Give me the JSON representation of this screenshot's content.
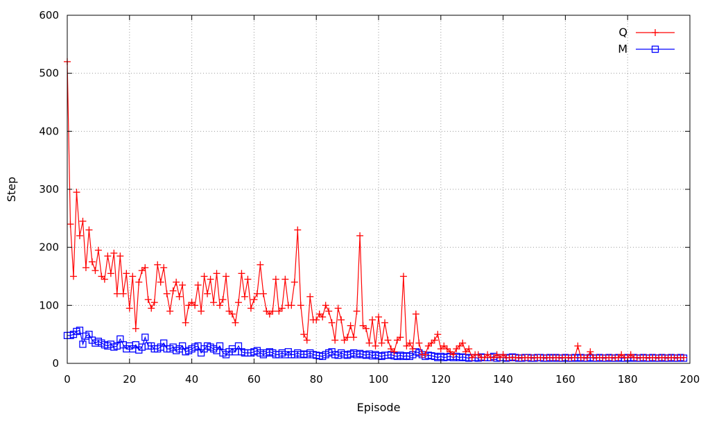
{
  "chart_data": {
    "type": "line",
    "title": "",
    "xlabel": "Episode",
    "ylabel": "Step",
    "xlim": [
      0,
      200
    ],
    "ylim": [
      0,
      600
    ],
    "x_ticks": [
      "0",
      "20",
      "40",
      "60",
      "80",
      "100",
      "120",
      "140",
      "160",
      "180",
      "200"
    ],
    "y_ticks": [
      "0",
      "100",
      "200",
      "300",
      "400",
      "500",
      "600"
    ],
    "grid": true,
    "legend_position": "top-right",
    "series": [
      {
        "name": "Q",
        "color": "#ff0000",
        "marker": "plus",
        "x": [
          0,
          1,
          2,
          3,
          4,
          5,
          6,
          7,
          8,
          9,
          10,
          11,
          12,
          13,
          14,
          15,
          16,
          17,
          18,
          19,
          20,
          21,
          22,
          23,
          24,
          25,
          26,
          27,
          28,
          29,
          30,
          31,
          32,
          33,
          34,
          35,
          36,
          37,
          38,
          39,
          40,
          41,
          42,
          43,
          44,
          45,
          46,
          47,
          48,
          49,
          50,
          51,
          52,
          53,
          54,
          55,
          56,
          57,
          58,
          59,
          60,
          61,
          62,
          63,
          64,
          65,
          66,
          67,
          68,
          69,
          70,
          71,
          72,
          73,
          74,
          75,
          76,
          77,
          78,
          79,
          80,
          81,
          82,
          83,
          84,
          85,
          86,
          87,
          88,
          89,
          90,
          91,
          92,
          93,
          94,
          95,
          96,
          97,
          98,
          99,
          100,
          101,
          102,
          103,
          104,
          105,
          106,
          107,
          108,
          109,
          110,
          111,
          112,
          113,
          114,
          115,
          116,
          117,
          118,
          119,
          120,
          121,
          122,
          123,
          124,
          125,
          126,
          127,
          128,
          129,
          130,
          131,
          132,
          133,
          134,
          135,
          136,
          137,
          138,
          139,
          140,
          141,
          142,
          143,
          144,
          145,
          146,
          147,
          148,
          149,
          150,
          151,
          152,
          153,
          154,
          155,
          156,
          157,
          158,
          159,
          160,
          161,
          162,
          163,
          164,
          165,
          166,
          167,
          168,
          169,
          170,
          171,
          172,
          173,
          174,
          175,
          176,
          177,
          178,
          179,
          180,
          181,
          182,
          183,
          184,
          185,
          186,
          187,
          188,
          189,
          190,
          191,
          192,
          193,
          194,
          195,
          196,
          197,
          198
        ],
        "y": [
          520,
          240,
          150,
          295,
          220,
          245,
          165,
          230,
          175,
          160,
          195,
          150,
          145,
          185,
          155,
          190,
          120,
          185,
          120,
          155,
          95,
          150,
          60,
          140,
          160,
          165,
          110,
          95,
          105,
          170,
          140,
          165,
          120,
          90,
          125,
          140,
          115,
          135,
          70,
          100,
          105,
          100,
          135,
          90,
          150,
          120,
          145,
          105,
          155,
          100,
          110,
          150,
          90,
          85,
          70,
          105,
          155,
          115,
          145,
          95,
          110,
          120,
          170,
          120,
          90,
          85,
          90,
          145,
          90,
          95,
          145,
          100,
          100,
          140,
          230,
          100,
          50,
          40,
          115,
          75,
          75,
          85,
          80,
          100,
          90,
          70,
          40,
          95,
          75,
          40,
          45,
          65,
          45,
          90,
          220,
          65,
          60,
          35,
          75,
          30,
          80,
          35,
          70,
          40,
          25,
          20,
          40,
          45,
          150,
          30,
          35,
          25,
          85,
          35,
          15,
          15,
          30,
          35,
          40,
          50,
          25,
          30,
          25,
          20,
          15,
          25,
          30,
          35,
          20,
          25,
          10,
          15,
          15,
          10,
          10,
          15,
          10,
          10,
          15,
          10,
          15,
          10,
          10,
          10,
          10,
          10,
          10,
          10,
          10,
          10,
          10,
          10,
          10,
          10,
          10,
          10,
          10,
          10,
          10,
          10,
          10,
          10,
          10,
          10,
          30,
          10,
          10,
          10,
          20,
          10,
          10,
          10,
          10,
          10,
          10,
          10,
          10,
          10,
          15,
          10,
          10,
          15,
          10,
          10,
          10,
          10,
          10,
          10,
          10,
          10,
          10,
          10,
          10,
          10,
          10,
          10,
          10,
          10,
          10
        ]
      },
      {
        "name": "M",
        "color": "#0000ff",
        "marker": "square",
        "x": [
          0,
          1,
          2,
          3,
          4,
          5,
          6,
          7,
          8,
          9,
          10,
          11,
          12,
          13,
          14,
          15,
          16,
          17,
          18,
          19,
          20,
          21,
          22,
          23,
          24,
          25,
          26,
          27,
          28,
          29,
          30,
          31,
          32,
          33,
          34,
          35,
          36,
          37,
          38,
          39,
          40,
          41,
          42,
          43,
          44,
          45,
          46,
          47,
          48,
          49,
          50,
          51,
          52,
          53,
          54,
          55,
          56,
          57,
          58,
          59,
          60,
          61,
          62,
          63,
          64,
          65,
          66,
          67,
          68,
          69,
          70,
          71,
          72,
          73,
          74,
          75,
          76,
          77,
          78,
          79,
          80,
          81,
          82,
          83,
          84,
          85,
          86,
          87,
          88,
          89,
          90,
          91,
          92,
          93,
          94,
          95,
          96,
          97,
          98,
          99,
          100,
          101,
          102,
          103,
          104,
          105,
          106,
          107,
          108,
          109,
          110,
          111,
          112,
          113,
          114,
          115,
          116,
          117,
          118,
          119,
          120,
          121,
          122,
          123,
          124,
          125,
          126,
          127,
          128,
          129,
          130,
          131,
          132,
          133,
          134,
          135,
          136,
          137,
          138,
          139,
          140,
          141,
          142,
          143,
          144,
          145,
          146,
          147,
          148,
          149,
          150,
          151,
          152,
          153,
          154,
          155,
          156,
          157,
          158,
          159,
          160,
          161,
          162,
          163,
          164,
          165,
          166,
          167,
          168,
          169,
          170,
          171,
          172,
          173,
          174,
          175,
          176,
          177,
          178,
          179,
          180,
          181,
          182,
          183,
          184,
          185,
          186,
          187,
          188,
          189,
          190,
          191,
          192,
          193,
          194,
          195,
          196,
          197,
          198
        ],
        "y": [
          48,
          48,
          50,
          55,
          57,
          33,
          47,
          50,
          40,
          35,
          38,
          35,
          32,
          30,
          33,
          28,
          30,
          42,
          32,
          25,
          30,
          25,
          32,
          23,
          28,
          45,
          30,
          30,
          25,
          25,
          28,
          35,
          25,
          25,
          28,
          22,
          25,
          30,
          20,
          22,
          25,
          28,
          30,
          18,
          25,
          30,
          28,
          25,
          22,
          30,
          18,
          15,
          20,
          25,
          20,
          30,
          20,
          18,
          18,
          18,
          20,
          22,
          18,
          15,
          18,
          20,
          18,
          15,
          15,
          18,
          15,
          20,
          15,
          15,
          18,
          15,
          16,
          15,
          18,
          15,
          14,
          13,
          12,
          15,
          18,
          20,
          15,
          14,
          18,
          15,
          14,
          16,
          18,
          15,
          17,
          15,
          14,
          16,
          13,
          15,
          13,
          12,
          14,
          14,
          15,
          13,
          12,
          14,
          12,
          13,
          12,
          15,
          20,
          18,
          15,
          12,
          14,
          13,
          12,
          10,
          12,
          10,
          11,
          12,
          10,
          12,
          10,
          11,
          10,
          9,
          10,
          10,
          9,
          11,
          10,
          10,
          10,
          12,
          9,
          10,
          10,
          9,
          10,
          11,
          10,
          9,
          9,
          10,
          10,
          9,
          9,
          10,
          10,
          9,
          9,
          10,
          9,
          10,
          9,
          9,
          10,
          9,
          9,
          10,
          9,
          10,
          9,
          9,
          10,
          9,
          9,
          10,
          9,
          9,
          10,
          9,
          9,
          10,
          9,
          9,
          10,
          9,
          10,
          9,
          9,
          10,
          9,
          9,
          10,
          9,
          9,
          10,
          9,
          9,
          10,
          9,
          9,
          10,
          9
        ]
      }
    ]
  }
}
